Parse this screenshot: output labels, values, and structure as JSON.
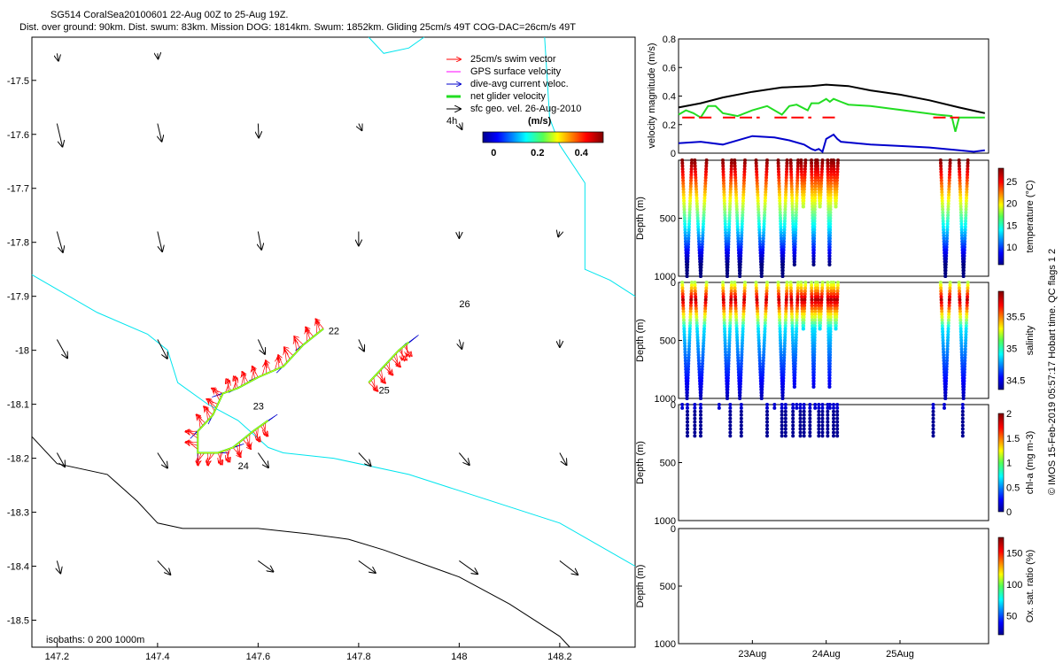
{
  "header": {
    "title": "SG514 CoralSea20100601 22-Aug 00Z to 25-Aug 19Z.",
    "subtitle": "Dist. over ground: 90km. Dist. swum: 83km. Mission DOG: 1814km. Swum: 1852km. Gliding 25cm/s 49T COG-DAC=26cm/s 49T"
  },
  "colors": {
    "black": "#000000",
    "cyan": "#00e5ee",
    "red": "#ff0000",
    "green": "#22dd22",
    "blue": "#0000cc",
    "magenta": "#ff00ff"
  },
  "chart_data": [
    {
      "id": "map",
      "type": "scatter",
      "xlim": [
        147.15,
        148.35
      ],
      "ylim": [
        -18.55,
        -17.42
      ],
      "xticks": [
        "147.2",
        "147.4",
        "147.6",
        "147.8",
        "148",
        "148.2"
      ],
      "xtick_values": [
        147.2,
        147.4,
        147.6,
        147.8,
        148.0,
        148.2
      ],
      "yticks": [
        "-17.5",
        "-17.6",
        "-17.7",
        "-17.8",
        "-17.9",
        "-18",
        "-18.1",
        "-18.2",
        "-18.3",
        "-18.4",
        "-18.5"
      ],
      "ytick_values": [
        -17.5,
        -17.6,
        -17.7,
        -17.8,
        -17.9,
        -18.0,
        -18.1,
        -18.2,
        -18.3,
        -18.4,
        -18.5
      ],
      "legend": {
        "items": [
          "25cm/s swim vector",
          "GPS surface velocity",
          "dive-avg current veloc.",
          "net glider velocity",
          "sfc geo. vel. 26-Aug-2010"
        ],
        "scale_label": "4h",
        "colorbar_unit": "(m/s)",
        "colorbar_ticks": [
          "0",
          "0.2",
          "0.4"
        ],
        "colorbar_tick_values": [
          0,
          0.2,
          0.4
        ],
        "colorbar_range": [
          -0.05,
          0.5
        ]
      },
      "isobath_label": "isobaths: 0   200  1000m",
      "day_labels": [
        {
          "text": "22",
          "x": 147.74,
          "y": -17.97
        },
        {
          "text": "23",
          "x": 147.59,
          "y": -18.11
        },
        {
          "text": "24",
          "x": 147.56,
          "y": -18.22
        },
        {
          "text": "25",
          "x": 147.84,
          "y": -18.08
        },
        {
          "text": "26",
          "x": 148.0,
          "y": -17.92
        }
      ],
      "isobath_200": [
        [
          147.15,
          -17.86
        ],
        [
          147.28,
          -17.93
        ],
        [
          147.38,
          -17.97
        ],
        [
          147.42,
          -18.0
        ],
        [
          147.43,
          -18.03
        ],
        [
          147.44,
          -18.06
        ],
        [
          147.5,
          -18.1
        ],
        [
          147.56,
          -18.13
        ],
        [
          147.62,
          -18.18
        ],
        [
          147.65,
          -18.19
        ],
        [
          147.75,
          -18.2
        ],
        [
          147.9,
          -18.23
        ],
        [
          148.0,
          -18.26
        ],
        [
          148.2,
          -18.32
        ],
        [
          148.35,
          -18.4
        ]
      ],
      "isobath_1000": [
        [
          147.15,
          -18.16
        ],
        [
          147.2,
          -18.21
        ],
        [
          147.3,
          -18.23
        ],
        [
          147.36,
          -18.28
        ],
        [
          147.4,
          -18.32
        ],
        [
          147.45,
          -18.33
        ],
        [
          147.6,
          -18.33
        ],
        [
          147.7,
          -18.34
        ],
        [
          147.78,
          -18.35
        ],
        [
          147.85,
          -18.37
        ],
        [
          148.0,
          -18.42
        ],
        [
          148.1,
          -18.47
        ],
        [
          148.2,
          -18.53
        ],
        [
          148.22,
          -18.55
        ]
      ],
      "coast_segments": [
        [
          [
            147.82,
            -17.42
          ],
          [
            147.85,
            -17.45
          ],
          [
            147.9,
            -17.44
          ],
          [
            147.93,
            -17.42
          ]
        ],
        [
          [
            148.17,
            -17.42
          ],
          [
            148.18,
            -17.57
          ],
          [
            148.2,
            -17.62
          ],
          [
            148.25,
            -17.69
          ],
          [
            148.25,
            -17.85
          ],
          [
            148.3,
            -17.87
          ],
          [
            148.35,
            -17.9
          ]
        ]
      ],
      "geo_vectors": [
        {
          "x": 147.2,
          "y": -17.45,
          "u": 0.2,
          "v": -1.0,
          "s": 0.014
        },
        {
          "x": 147.4,
          "y": -17.45,
          "u": 0.1,
          "v": -1.0,
          "s": 0.01
        },
        {
          "x": 147.2,
          "y": -17.58,
          "u": 0.25,
          "v": -1.0,
          "s": 0.044
        },
        {
          "x": 147.4,
          "y": -17.58,
          "u": 0.25,
          "v": -1.0,
          "s": 0.034
        },
        {
          "x": 147.6,
          "y": -17.58,
          "u": 0.05,
          "v": -1.0,
          "s": 0.026
        },
        {
          "x": 147.8,
          "y": -17.58,
          "u": 0.5,
          "v": -1.0,
          "s": 0.014
        },
        {
          "x": 148.0,
          "y": -17.58,
          "u": 0.5,
          "v": -1.0,
          "s": 0.012
        },
        {
          "x": 147.2,
          "y": -17.78,
          "u": 0.3,
          "v": -1.0,
          "s": 0.04
        },
        {
          "x": 147.4,
          "y": -17.78,
          "u": 0.25,
          "v": -1.0,
          "s": 0.038
        },
        {
          "x": 147.6,
          "y": -17.78,
          "u": 0.2,
          "v": -1.0,
          "s": 0.034
        },
        {
          "x": 147.8,
          "y": -17.78,
          "u": 0.0,
          "v": -1.0,
          "s": 0.026
        },
        {
          "x": 148.0,
          "y": -17.78,
          "u": 0.0,
          "v": -1.0,
          "s": 0.012
        },
        {
          "x": 148.2,
          "y": -17.78,
          "u": -0.3,
          "v": -1.0,
          "s": 0.01
        },
        {
          "x": 147.2,
          "y": -17.98,
          "u": 0.6,
          "v": -1.0,
          "s": 0.04
        },
        {
          "x": 147.4,
          "y": -17.98,
          "u": 0.55,
          "v": -1.0,
          "s": 0.04
        },
        {
          "x": 147.6,
          "y": -17.98,
          "u": 0.5,
          "v": -1.0,
          "s": 0.03
        },
        {
          "x": 147.8,
          "y": -17.98,
          "u": 0.5,
          "v": -1.0,
          "s": 0.024
        },
        {
          "x": 148.0,
          "y": -17.98,
          "u": 0.3,
          "v": -1.0,
          "s": 0.018
        },
        {
          "x": 148.2,
          "y": -17.98,
          "u": 0.0,
          "v": -1.0,
          "s": 0.014
        },
        {
          "x": 147.2,
          "y": -18.19,
          "u": 0.6,
          "v": -1.0,
          "s": 0.03
        },
        {
          "x": 147.4,
          "y": -18.19,
          "u": 0.7,
          "v": -1.0,
          "s": 0.034
        },
        {
          "x": 147.6,
          "y": -18.19,
          "u": 0.75,
          "v": -1.0,
          "s": 0.034
        },
        {
          "x": 147.8,
          "y": -18.19,
          "u": 1.0,
          "v": -1.0,
          "s": 0.034
        },
        {
          "x": 148.0,
          "y": -18.19,
          "u": 0.9,
          "v": -1.0,
          "s": 0.03
        },
        {
          "x": 148.2,
          "y": -18.19,
          "u": 0.6,
          "v": -1.0,
          "s": 0.026
        },
        {
          "x": 147.2,
          "y": -18.39,
          "u": 0.3,
          "v": -1.0,
          "s": 0.024
        },
        {
          "x": 147.4,
          "y": -18.39,
          "u": 1.0,
          "v": -1.0,
          "s": 0.036
        },
        {
          "x": 147.6,
          "y": -18.39,
          "u": 1.5,
          "v": -1.0,
          "s": 0.036
        },
        {
          "x": 147.8,
          "y": -18.39,
          "u": 1.5,
          "v": -1.0,
          "s": 0.04
        },
        {
          "x": 148.0,
          "y": -18.39,
          "u": 1.5,
          "v": -1.0,
          "s": 0.044
        },
        {
          "x": 148.2,
          "y": -18.39,
          "u": 1.4,
          "v": -1.0,
          "s": 0.044
        }
      ],
      "track": [
        [
          147.73,
          -17.96
        ],
        [
          147.69,
          -17.99
        ],
        [
          147.65,
          -18.03
        ],
        [
          147.6,
          -18.05
        ],
        [
          147.56,
          -18.07
        ],
        [
          147.53,
          -18.08
        ],
        [
          147.51,
          -18.12
        ],
        [
          147.48,
          -18.15
        ],
        [
          147.48,
          -18.19
        ],
        [
          147.52,
          -18.19
        ],
        [
          147.55,
          -18.18
        ],
        [
          147.59,
          -18.15
        ],
        [
          147.62,
          -18.13
        ]
      ],
      "track2": [
        [
          147.82,
          -18.06
        ],
        [
          147.85,
          -18.03
        ],
        [
          147.88,
          -18.0
        ],
        [
          147.9,
          -17.985
        ]
      ]
    },
    {
      "id": "velocity",
      "type": "line",
      "ylabel": "velocity magnitude (m/s)",
      "ylim": [
        0,
        0.8
      ],
      "yticks": [
        "0",
        "0.2",
        "0.4",
        "0.6",
        "0.8"
      ],
      "ytick_values": [
        0,
        0.2,
        0.4,
        0.6,
        0.8
      ],
      "xlim": [
        22.0,
        26.2
      ],
      "series": [
        {
          "name": "sfc geo. vel.",
          "color": "#000000",
          "x": [
            22.0,
            22.3,
            22.6,
            23.0,
            23.4,
            23.8,
            24.0,
            24.3,
            24.6,
            25.0,
            25.4,
            25.8,
            26.15
          ],
          "y": [
            0.32,
            0.35,
            0.39,
            0.43,
            0.46,
            0.47,
            0.48,
            0.47,
            0.44,
            0.41,
            0.37,
            0.32,
            0.28
          ]
        },
        {
          "name": "net glider velocity",
          "color": "#22dd22",
          "x": [
            22.0,
            22.1,
            22.2,
            22.3,
            22.4,
            22.5,
            22.6,
            22.8,
            23.0,
            23.2,
            23.4,
            23.5,
            23.6,
            23.75,
            23.8,
            23.9,
            24.0,
            24.05,
            24.1,
            24.2,
            24.3,
            24.6,
            24.9,
            25.2,
            25.5,
            25.7,
            25.75,
            25.8,
            26.15
          ],
          "y": [
            0.27,
            0.3,
            0.28,
            0.25,
            0.33,
            0.33,
            0.28,
            0.26,
            0.3,
            0.33,
            0.27,
            0.33,
            0.34,
            0.3,
            0.35,
            0.35,
            0.38,
            0.36,
            0.38,
            0.36,
            0.34,
            0.33,
            0.31,
            0.29,
            0.27,
            0.26,
            0.15,
            0.25,
            0.25
          ]
        },
        {
          "name": "dive-avg current veloc.",
          "color": "#0000cc",
          "x": [
            22.0,
            22.3,
            22.6,
            23.0,
            23.3,
            23.5,
            23.7,
            23.8,
            23.85,
            23.9,
            23.95,
            24.0,
            24.1,
            24.15,
            24.2,
            24.6,
            25.0,
            25.4,
            25.8,
            26.0,
            26.15
          ],
          "y": [
            0.07,
            0.08,
            0.06,
            0.12,
            0.11,
            0.09,
            0.06,
            0.03,
            0.02,
            0.03,
            0.01,
            0.1,
            0.13,
            0.1,
            0.08,
            0.06,
            0.05,
            0.04,
            0.02,
            0.01,
            0.02
          ]
        }
      ],
      "dash_segments": [
        [
          22.05,
          22.45
        ],
        [
          22.6,
          23.1
        ],
        [
          23.3,
          23.8
        ],
        [
          23.95,
          24.15
        ],
        [
          25.45,
          25.8
        ]
      ],
      "dash_value": 0.25
    },
    {
      "id": "temperature",
      "type": "scatter",
      "ylabel": "Depth (m)",
      "ylim": [
        1000,
        0
      ],
      "yticks": [
        "500",
        "1000"
      ],
      "ytick_values": [
        500,
        1000
      ],
      "colorbar_label": "temperature (°C)",
      "colorbar_ticks": [
        "10",
        "15",
        "20",
        "25"
      ],
      "colorbar_tick_values": [
        10,
        15,
        20,
        25
      ],
      "colorbar_range": [
        6,
        28
      ]
    },
    {
      "id": "salinity",
      "type": "scatter",
      "ylabel": "Depth (m)",
      "ylim": [
        1000,
        0
      ],
      "yticks": [
        "0",
        "500",
        "1000"
      ],
      "ytick_values": [
        0,
        500,
        1000
      ],
      "colorbar_label": "salinity",
      "colorbar_ticks": [
        "34.5",
        "35",
        "35.5"
      ],
      "colorbar_tick_values": [
        34.5,
        35,
        35.5
      ],
      "colorbar_range": [
        34.35,
        35.9
      ]
    },
    {
      "id": "chla",
      "type": "scatter",
      "ylabel": "Depth (m)",
      "ylim": [
        1000,
        0
      ],
      "yticks": [
        "0",
        "500",
        "1000"
      ],
      "ytick_values": [
        0,
        500,
        1000
      ],
      "colorbar_label": "chl-a (mg m-3)",
      "colorbar_ticks": [
        "0",
        "0.5",
        "1",
        "1.5",
        "2"
      ],
      "colorbar_tick_values": [
        0,
        0.5,
        1,
        1.5,
        2
      ],
      "colorbar_range": [
        0,
        2
      ]
    },
    {
      "id": "oxygen",
      "type": "scatter",
      "ylabel": "Depth (m)",
      "ylim": [
        1000,
        0
      ],
      "yticks": [
        "0",
        "500",
        "1000"
      ],
      "ytick_values": [
        0,
        500,
        1000
      ],
      "colorbar_label": "Ox. sat. ratio (%)",
      "colorbar_ticks": [
        "50",
        "100",
        "150"
      ],
      "colorbar_tick_values": [
        50,
        100,
        150
      ],
      "colorbar_range": [
        20,
        175
      ],
      "xticks": [
        "23Aug",
        "24Aug",
        "25Aug"
      ],
      "xtick_values": [
        23.0,
        24.0,
        25.0
      ],
      "xlim": [
        22.0,
        26.2
      ]
    }
  ],
  "profiles": {
    "dives_pairs": [
      [
        22.05,
        22.18
      ],
      [
        22.22,
        22.38
      ],
      [
        22.6,
        22.72
      ],
      [
        22.76,
        22.9
      ],
      [
        23.05,
        23.2
      ],
      [
        23.35,
        23.47
      ],
      [
        23.52,
        23.62
      ],
      [
        23.66,
        23.72
      ],
      [
        23.8,
        23.86
      ],
      [
        23.88,
        23.95
      ],
      [
        24.02,
        24.07
      ],
      [
        24.1,
        24.16
      ],
      [
        25.55,
        25.68
      ],
      [
        25.8,
        25.92
      ]
    ],
    "chla_columns": [
      22.05,
      22.12,
      22.22,
      22.3,
      22.55,
      22.7,
      22.85,
      23.2,
      23.3,
      23.4,
      23.45,
      23.55,
      23.6,
      23.65,
      23.7,
      23.78,
      23.85,
      23.9,
      23.95,
      24.02,
      24.05,
      24.1,
      24.15,
      25.45,
      25.6,
      25.85
    ]
  },
  "side_caption": "© IMOS 15-Feb-2019 05:57:17 Hobart time. QC flags 1  2"
}
